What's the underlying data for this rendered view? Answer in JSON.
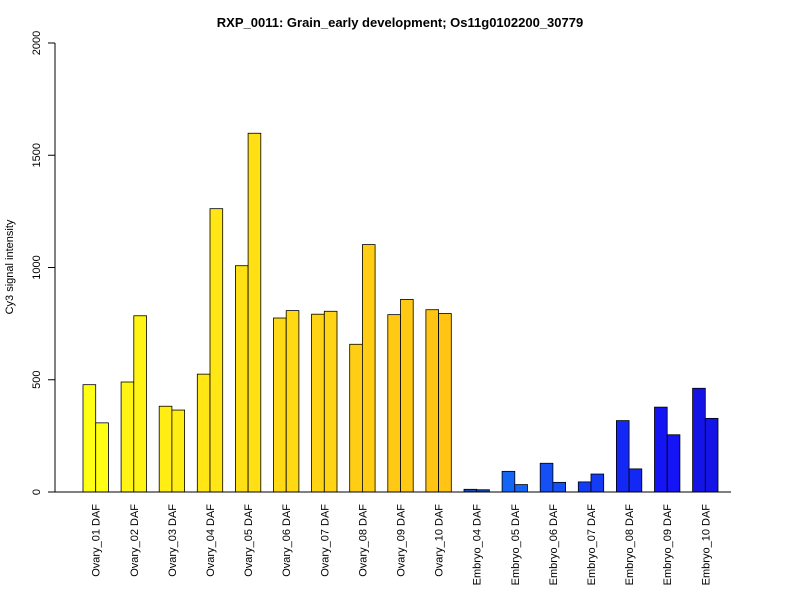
{
  "chart_data": {
    "type": "bar",
    "title": "RXP_0011: Grain_early development; Os11g0102200_30779",
    "xlabel": "",
    "ylabel": "Cy3 signal intensity",
    "ylim": [
      0,
      2000
    ],
    "yticks": [
      0,
      500,
      1000,
      1500,
      2000
    ],
    "grid": false,
    "legend": "none",
    "categories": [
      "Ovary_01 DAF",
      "Ovary_02 DAF",
      "Ovary_03 DAF",
      "Ovary_04 DAF",
      "Ovary_05 DAF",
      "Ovary_06 DAF",
      "Ovary_07 DAF",
      "Ovary_08 DAF",
      "Ovary_09 DAF",
      "Ovary_10 DAF",
      "Embryo_04 DAF",
      "Embryo_05 DAF",
      "Embryo_06 DAF",
      "Embryo_07 DAF",
      "Embryo_08 DAF",
      "Embryo_09 DAF",
      "Embryo_10 DAF"
    ],
    "series": [
      {
        "values": [
          478,
          490,
          382,
          525,
          1008,
          775,
          792,
          658,
          790,
          812,
          12,
          92,
          128,
          45,
          318,
          378,
          462
        ]
      },
      {
        "values": [
          308,
          785,
          365,
          1262,
          1598,
          808,
          805,
          1102,
          858,
          795,
          10,
          33,
          43,
          80,
          103,
          255,
          328
        ]
      }
    ],
    "colors": [
      "#ffff14",
      "#fff414",
      "#ffed14",
      "#ffe614",
      "#ffe014",
      "#ffda14",
      "#ffd414",
      "#ffce14",
      "#ffc914",
      "#ffc414",
      "#1446b4",
      "#1464f5",
      "#1450f5",
      "#143cf5",
      "#1428f5",
      "#1414f5",
      "#1414e6"
    ]
  }
}
